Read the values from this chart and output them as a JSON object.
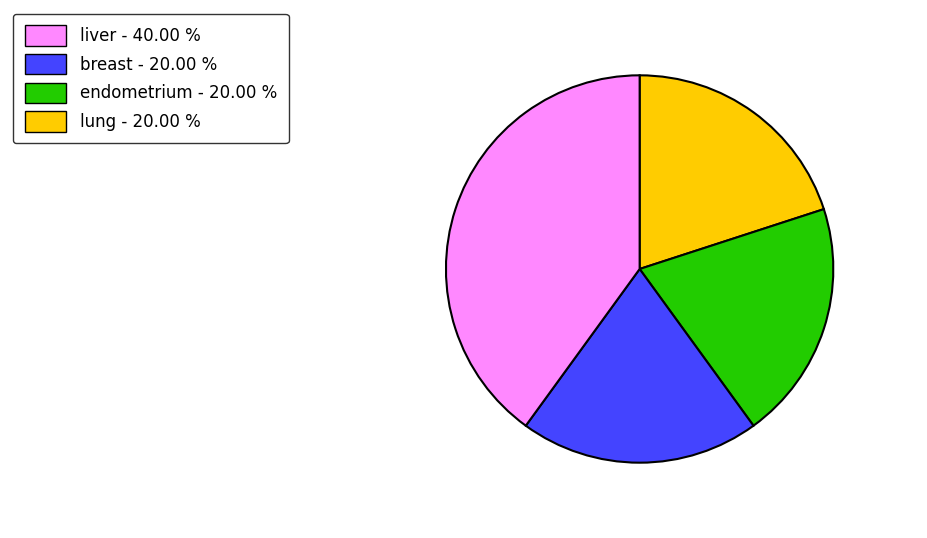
{
  "labels": [
    "liver",
    "breast",
    "endometrium",
    "lung"
  ],
  "sizes": [
    40,
    20,
    20,
    20
  ],
  "colors": [
    "#ff88ff",
    "#4444ff",
    "#22cc00",
    "#ffcc00"
  ],
  "legend_labels": [
    "liver - 40.00 %",
    "breast - 20.00 %",
    "endometrium - 20.00 %",
    "lung - 20.00 %"
  ],
  "pie_order_sizes": [
    20,
    20,
    20,
    40
  ],
  "pie_order_colors": [
    "#ffcc00",
    "#22cc00",
    "#4444ff",
    "#ff88ff"
  ],
  "start_angle": 90,
  "counterclock": false,
  "background_color": "#ffffff",
  "edge_color": "#000000",
  "linewidth": 1.5,
  "figsize": [
    9.27,
    5.38
  ],
  "dpi": 100
}
